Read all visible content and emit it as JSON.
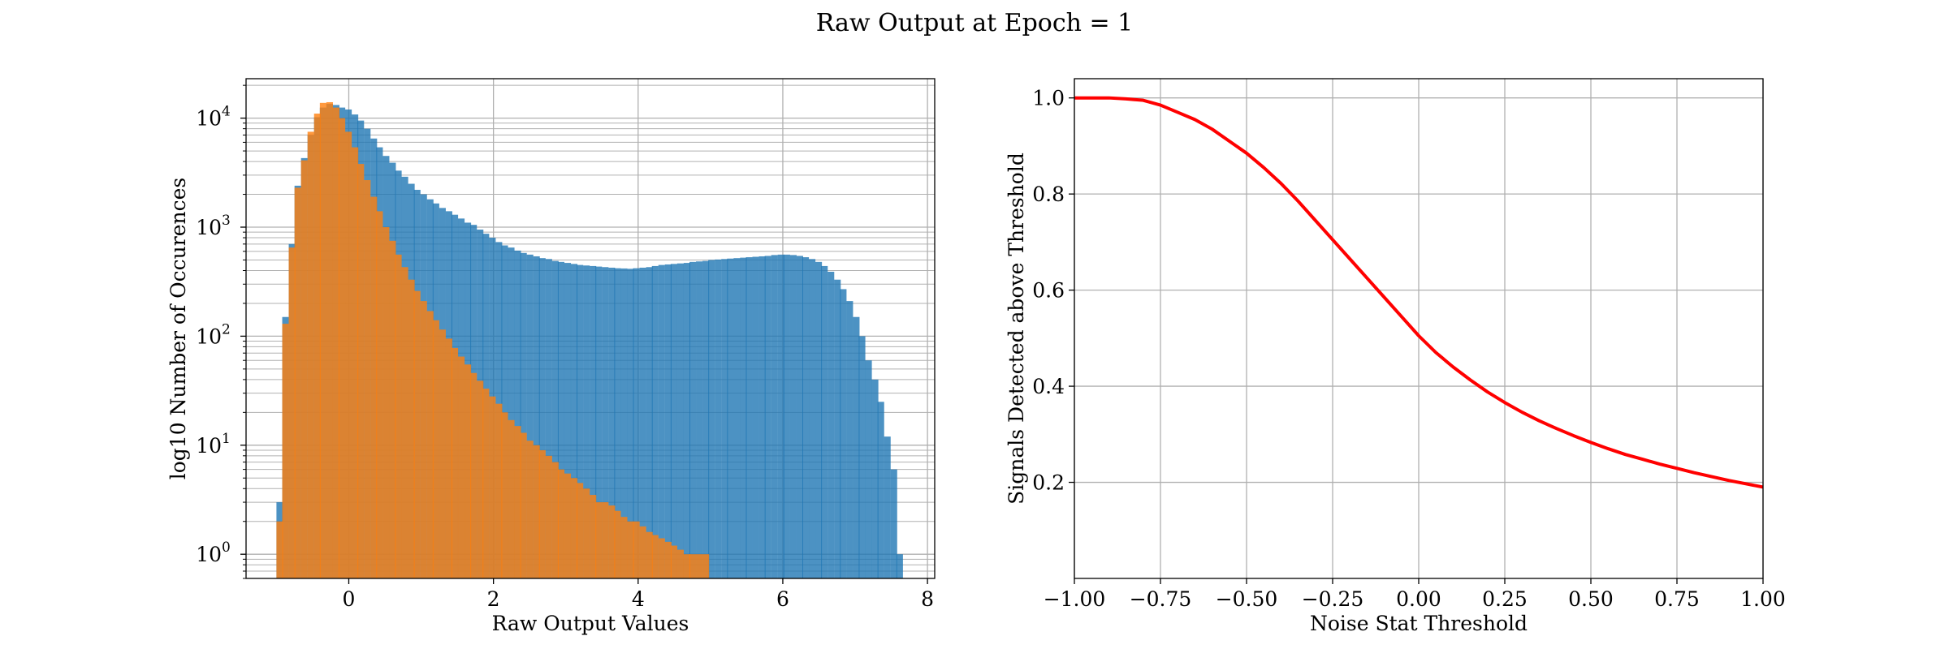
{
  "figure": {
    "title": "Raw Output at Epoch = 1"
  },
  "colors": {
    "blue": "#1f77b4",
    "orange": "#ff7f0e",
    "red": "#ff0000",
    "grid": "#b0b0b0"
  },
  "chart_data": [
    {
      "type": "bar",
      "subtype": "histogram",
      "xlabel": "Raw Output Values",
      "ylabel": "log10 Number of Occurences",
      "xlim": [
        -1.42,
        8.1
      ],
      "ylim": [
        0.6,
        23000
      ],
      "yscale": "log",
      "grid": true,
      "grid_minor_y": true,
      "x_ticks": [
        0,
        2,
        4,
        6,
        8
      ],
      "x_tick_labels": [
        "0",
        "2",
        "4",
        "6",
        "8"
      ],
      "y_ticks": [
        1,
        10,
        100,
        1000,
        10000
      ],
      "y_tick_bases": [
        "10",
        "10",
        "10",
        "10",
        "10"
      ],
      "y_tick_exponents": [
        "0",
        "1",
        "2",
        "3",
        "4"
      ],
      "bin_width": 0.0865,
      "series": [
        {
          "color": "#1f77b4",
          "alpha": 0.8,
          "points": [
            [
              -1.0,
              3
            ],
            [
              -0.92,
              150
            ],
            [
              -0.83,
              700
            ],
            [
              -0.75,
              2400
            ],
            [
              -0.66,
              4300
            ],
            [
              -0.57,
              7000
            ],
            [
              -0.48,
              10200
            ],
            [
              -0.4,
              12500
            ],
            [
              -0.31,
              13500
            ],
            [
              -0.22,
              13200
            ],
            [
              -0.14,
              12500
            ],
            [
              -0.05,
              12000
            ],
            [
              0.04,
              10800
            ],
            [
              0.12,
              9500
            ],
            [
              0.21,
              8000
            ],
            [
              0.3,
              6500
            ],
            [
              0.38,
              5400
            ],
            [
              0.47,
              4500
            ],
            [
              0.56,
              3900
            ],
            [
              0.64,
              3300
            ],
            [
              0.73,
              2900
            ],
            [
              0.82,
              2500
            ],
            [
              0.9,
              2200
            ],
            [
              0.99,
              2000
            ],
            [
              1.08,
              1800
            ],
            [
              1.16,
              1650
            ],
            [
              1.25,
              1500
            ],
            [
              1.34,
              1400
            ],
            [
              1.42,
              1300
            ],
            [
              1.51,
              1200
            ],
            [
              1.6,
              1100
            ],
            [
              1.68,
              1050
            ],
            [
              1.77,
              950
            ],
            [
              1.85,
              870
            ],
            [
              1.94,
              800
            ],
            [
              2.03,
              730
            ],
            [
              2.11,
              680
            ],
            [
              2.2,
              650
            ],
            [
              2.29,
              610
            ],
            [
              2.37,
              580
            ],
            [
              2.46,
              560
            ],
            [
              2.55,
              540
            ],
            [
              2.63,
              520
            ],
            [
              2.72,
              510
            ],
            [
              2.81,
              490
            ],
            [
              2.89,
              480
            ],
            [
              2.98,
              470
            ],
            [
              3.07,
              460
            ],
            [
              3.15,
              450
            ],
            [
              3.24,
              445
            ],
            [
              3.33,
              440
            ],
            [
              3.41,
              435
            ],
            [
              3.5,
              430
            ],
            [
              3.59,
              425
            ],
            [
              3.67,
              420
            ],
            [
              3.76,
              418
            ],
            [
              3.85,
              415
            ],
            [
              3.93,
              420
            ],
            [
              4.02,
              425
            ],
            [
              4.11,
              430
            ],
            [
              4.19,
              440
            ],
            [
              4.28,
              450
            ],
            [
              4.37,
              455
            ],
            [
              4.45,
              460
            ],
            [
              4.54,
              465
            ],
            [
              4.63,
              470
            ],
            [
              4.71,
              480
            ],
            [
              4.8,
              485
            ],
            [
              4.89,
              490
            ],
            [
              4.97,
              500
            ],
            [
              5.06,
              505
            ],
            [
              5.15,
              510
            ],
            [
              5.23,
              515
            ],
            [
              5.32,
              520
            ],
            [
              5.41,
              525
            ],
            [
              5.49,
              530
            ],
            [
              5.58,
              535
            ],
            [
              5.67,
              540
            ],
            [
              5.75,
              545
            ],
            [
              5.84,
              555
            ],
            [
              5.93,
              560
            ],
            [
              6.01,
              560
            ],
            [
              6.1,
              555
            ],
            [
              6.19,
              545
            ],
            [
              6.27,
              530
            ],
            [
              6.36,
              510
            ],
            [
              6.45,
              480
            ],
            [
              6.53,
              440
            ],
            [
              6.62,
              390
            ],
            [
              6.71,
              330
            ],
            [
              6.79,
              270
            ],
            [
              6.88,
              210
            ],
            [
              6.97,
              150
            ],
            [
              7.05,
              100
            ],
            [
              7.14,
              60
            ],
            [
              7.23,
              40
            ],
            [
              7.31,
              25
            ],
            [
              7.4,
              12
            ],
            [
              7.49,
              6
            ],
            [
              7.57,
              1
            ]
          ]
        },
        {
          "color": "#ff7f0e",
          "alpha": 0.8,
          "points": [
            [
              -1.0,
              2
            ],
            [
              -0.92,
              130
            ],
            [
              -0.83,
              650
            ],
            [
              -0.75,
              2300
            ],
            [
              -0.66,
              4100
            ],
            [
              -0.57,
              7500
            ],
            [
              -0.48,
              11000
            ],
            [
              -0.4,
              13800
            ],
            [
              -0.31,
              14000
            ],
            [
              -0.22,
              12500
            ],
            [
              -0.14,
              10000
            ],
            [
              -0.05,
              7500
            ],
            [
              0.04,
              5400
            ],
            [
              0.12,
              3800
            ],
            [
              0.21,
              2700
            ],
            [
              0.3,
              1900
            ],
            [
              0.38,
              1400
            ],
            [
              0.47,
              1000
            ],
            [
              0.56,
              750
            ],
            [
              0.64,
              560
            ],
            [
              0.73,
              430
            ],
            [
              0.82,
              330
            ],
            [
              0.9,
              260
            ],
            [
              0.99,
              210
            ],
            [
              1.08,
              170
            ],
            [
              1.16,
              140
            ],
            [
              1.25,
              115
            ],
            [
              1.34,
              95
            ],
            [
              1.42,
              78
            ],
            [
              1.51,
              65
            ],
            [
              1.6,
              55
            ],
            [
              1.68,
              46
            ],
            [
              1.77,
              39
            ],
            [
              1.85,
              33
            ],
            [
              1.94,
              28
            ],
            [
              2.03,
              24
            ],
            [
              2.11,
              20
            ],
            [
              2.2,
              17
            ],
            [
              2.29,
              15
            ],
            [
              2.37,
              13
            ],
            [
              2.46,
              11
            ],
            [
              2.55,
              10
            ],
            [
              2.63,
              9
            ],
            [
              2.72,
              8
            ],
            [
              2.81,
              7
            ],
            [
              2.89,
              6
            ],
            [
              2.98,
              5.5
            ],
            [
              3.07,
              5
            ],
            [
              3.15,
              4.5
            ],
            [
              3.24,
              4
            ],
            [
              3.33,
              3.5
            ],
            [
              3.41,
              3
            ],
            [
              3.5,
              3
            ],
            [
              3.59,
              2.8
            ],
            [
              3.67,
              2.5
            ],
            [
              3.76,
              2.2
            ],
            [
              3.85,
              2
            ],
            [
              3.93,
              2
            ],
            [
              4.02,
              1.8
            ],
            [
              4.11,
              1.6
            ],
            [
              4.19,
              1.5
            ],
            [
              4.28,
              1.4
            ],
            [
              4.37,
              1.3
            ],
            [
              4.45,
              1.2
            ],
            [
              4.54,
              1.1
            ],
            [
              4.63,
              1
            ],
            [
              4.71,
              1
            ],
            [
              4.8,
              1
            ],
            [
              4.89,
              1
            ]
          ]
        }
      ]
    },
    {
      "type": "line",
      "xlabel": "Noise Stat Threshold",
      "ylabel": "Signals Detected above Threshold",
      "xlim": [
        -1.0,
        1.0
      ],
      "ylim": [
        0.0,
        1.04
      ],
      "grid": true,
      "x_ticks": [
        -1.0,
        -0.75,
        -0.5,
        -0.25,
        0.0,
        0.25,
        0.5,
        0.75,
        1.0
      ],
      "x_tick_labels": [
        "−1.00",
        "−0.75",
        "−0.50",
        "−0.25",
        "0.00",
        "0.25",
        "0.50",
        "0.75",
        "1.00"
      ],
      "y_ticks": [
        0.2,
        0.4,
        0.6,
        0.8,
        1.0
      ],
      "y_tick_labels": [
        "0.2",
        "0.4",
        "0.6",
        "0.8",
        "1.0"
      ],
      "series": [
        {
          "color": "#ff0000",
          "x": [
            -1.0,
            -0.9,
            -0.85,
            -0.8,
            -0.75,
            -0.7,
            -0.65,
            -0.6,
            -0.55,
            -0.5,
            -0.45,
            -0.4,
            -0.35,
            -0.3,
            -0.25,
            -0.2,
            -0.15,
            -0.1,
            -0.05,
            0.0,
            0.05,
            0.1,
            0.15,
            0.2,
            0.25,
            0.3,
            0.35,
            0.4,
            0.45,
            0.5,
            0.55,
            0.6,
            0.65,
            0.7,
            0.75,
            0.8,
            0.85,
            0.9,
            0.95,
            1.0
          ],
          "y": [
            1.0,
            1.0,
            0.998,
            0.995,
            0.985,
            0.97,
            0.955,
            0.935,
            0.91,
            0.885,
            0.855,
            0.822,
            0.785,
            0.745,
            0.705,
            0.665,
            0.625,
            0.585,
            0.545,
            0.505,
            0.47,
            0.44,
            0.413,
            0.388,
            0.366,
            0.346,
            0.328,
            0.312,
            0.297,
            0.283,
            0.27,
            0.258,
            0.248,
            0.238,
            0.229,
            0.22,
            0.212,
            0.204,
            0.197,
            0.19
          ]
        }
      ]
    }
  ]
}
